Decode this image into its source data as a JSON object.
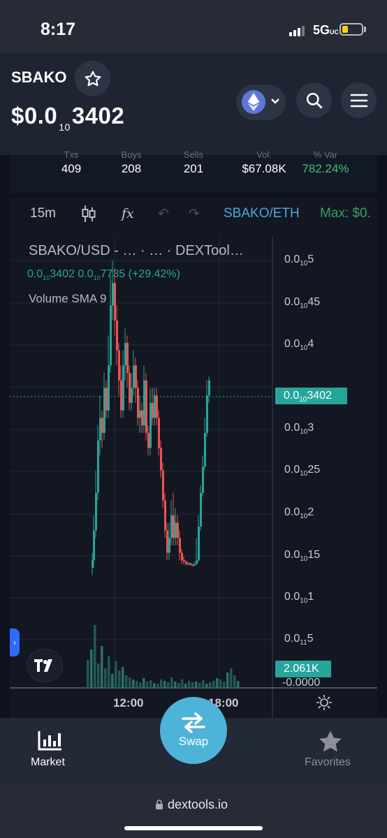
{
  "status": {
    "time": "8:17",
    "network": "5G",
    "network_suffix": "UC"
  },
  "token": {
    "symbol": "SBAKO",
    "price_prefix": "$0.0",
    "price_zeros": "10",
    "price_digits": "3402"
  },
  "stats": [
    "409",
    "208",
    "201",
    "$67.08K",
    "782.24%"
  ],
  "toolbar": {
    "interval": "15m",
    "indicator_label": "fx",
    "pair": "SBAKO/ETH",
    "max": "Max: $0."
  },
  "chart_legend": {
    "title": "SBAKO/USD - …  ·  …  ·  DEXTool…",
    "ohlc_a": "0.0",
    "ohlc_a_sub": "10",
    "ohlc_a_rest": "3402",
    "ohlc_b": "0.0",
    "ohlc_b_sub": "10",
    "ohlc_b_rest": "7735",
    "ohlc_change": "(+29.42%)",
    "volume": "Volume SMA 9"
  },
  "axis": {
    "labels": [
      {
        "pre": "0.0",
        "sub": "10",
        "post": "5"
      },
      {
        "pre": "0.0",
        "sub": "10",
        "post": "45"
      },
      {
        "pre": "0.0",
        "sub": "10",
        "post": "4"
      },
      {
        "pre": "0.0",
        "sub": "10",
        "post": "3"
      },
      {
        "pre": "0.0",
        "sub": "10",
        "post": "25"
      },
      {
        "pre": "0.0",
        "sub": "10",
        "post": "2"
      },
      {
        "pre": "0.0",
        "sub": "10",
        "post": "15"
      },
      {
        "pre": "0.0",
        "sub": "10",
        "post": "1"
      },
      {
        "pre": "0.0",
        "sub": "11",
        "post": "5"
      }
    ],
    "current_pre": "0.0",
    "current_sub": "10",
    "current_post": "3402",
    "volume_tag": "2.061K",
    "zero": "-0.0000"
  },
  "time_labels": [
    "12:00",
    "18:00"
  ],
  "nav": {
    "market": "Market",
    "swap": "Swap",
    "favorites": "Favorites"
  },
  "url": "dextools.io",
  "colors": {
    "up": "#26a69a",
    "down": "#ef5350",
    "accent": "#4eb3d8"
  }
}
